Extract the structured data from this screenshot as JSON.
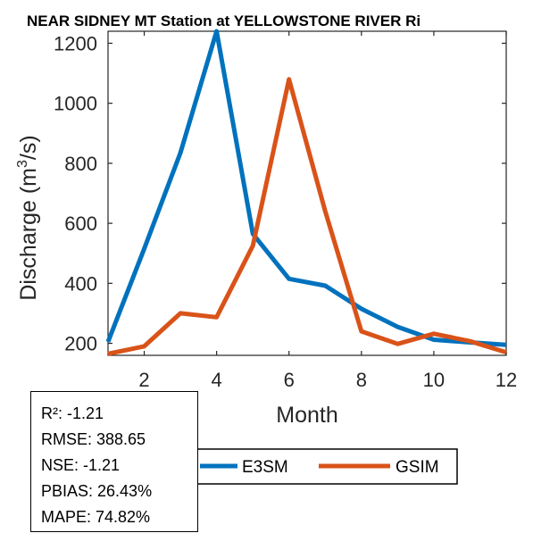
{
  "chart_data": {
    "type": "line",
    "title": "NEAR SIDNEY MT  Station at  YELLOWSTONE RIVER  Ri",
    "xlabel": "Month",
    "ylabel_main": "Discharge (m",
    "ylabel_sup": "3",
    "ylabel_tail": "/s)",
    "xlim": [
      1,
      12
    ],
    "ylim": [
      160,
      1240
    ],
    "xticks": [
      2,
      4,
      6,
      8,
      10,
      12
    ],
    "yticks": [
      200,
      400,
      600,
      800,
      1000,
      1200
    ],
    "x": [
      1,
      2,
      3,
      4,
      5,
      6,
      7,
      8,
      9,
      10,
      11,
      12
    ],
    "series": [
      {
        "name": "E3SM",
        "color": "#0072BD",
        "values": [
          205,
          515,
          835,
          1240,
          565,
          415,
          392,
          315,
          255,
          212,
          203,
          195
        ]
      },
      {
        "name": "GSIM",
        "color": "#D95319",
        "values": [
          165,
          190,
          300,
          287,
          525,
          1080,
          640,
          240,
          198,
          232,
          207,
          170
        ]
      }
    ],
    "legend_position": "bottom-center"
  },
  "stats": {
    "r2": "R²: -1.21",
    "rmse": "RMSE: 388.65",
    "nse": "NSE: -1.21",
    "pbias": "PBIAS: 26.43%",
    "mape": "MAPE: 74.82%"
  }
}
